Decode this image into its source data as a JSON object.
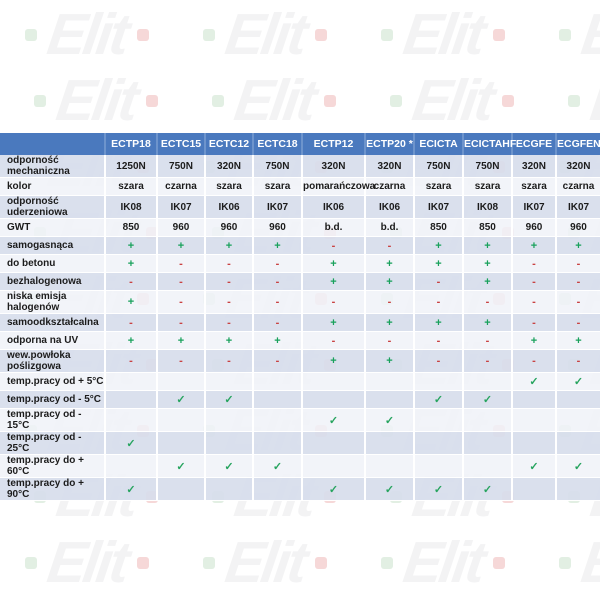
{
  "watermark": {
    "text": "Elit",
    "text_color": "#f3f3f4",
    "dot_left_color": "#e2efe3",
    "dot_right_color": "#f6d8d8"
  },
  "chart_data": {
    "type": "table",
    "title": "",
    "columns": [
      "ECTP18",
      "ECTC15",
      "ECTC12",
      "ECTC18",
      "ECTP12",
      "ECTP20 *",
      "ECICTA",
      "ECICTAHF",
      "ECGFE",
      "ECGFEN"
    ],
    "rows": [
      {
        "label": "odporność mechaniczna",
        "values": [
          "1250N",
          "750N",
          "320N",
          "750N",
          "320N",
          "320N",
          "750N",
          "750N",
          "320N",
          "320N"
        ]
      },
      {
        "label": "kolor",
        "values": [
          "szara",
          "czarna",
          "szara",
          "szara",
          "pomarańczowa",
          "czarna",
          "szara",
          "szara",
          "szara",
          "czarna"
        ]
      },
      {
        "label": "odporność uderzeniowa",
        "values": [
          "IK08",
          "IK07",
          "IK06",
          "IK07",
          "IK06",
          "IK06",
          "IK07",
          "IK08",
          "IK07",
          "IK07"
        ]
      },
      {
        "label": "GWT",
        "values": [
          "850",
          "960",
          "960",
          "960",
          "b.d.",
          "b.d.",
          "850",
          "850",
          "960",
          "960"
        ]
      },
      {
        "label": "samogasnąca",
        "values": [
          "+",
          "+",
          "+",
          "+",
          "-",
          "-",
          "+",
          "+",
          "+",
          "+"
        ]
      },
      {
        "label": "do betonu",
        "values": [
          "+",
          "-",
          "-",
          "-",
          "+",
          "+",
          "+",
          "+",
          "-",
          "-"
        ]
      },
      {
        "label": "bezhalogenowa",
        "values": [
          "-",
          "-",
          "-",
          "-",
          "+",
          "+",
          "-",
          "+",
          "-",
          "-"
        ]
      },
      {
        "label": "niska emisja halogenów",
        "values": [
          "+",
          "-",
          "-",
          "-",
          "-",
          "-",
          "-",
          "-",
          "-",
          "-"
        ]
      },
      {
        "label": "samoodkształcalna",
        "values": [
          "-",
          "-",
          "-",
          "-",
          "+",
          "+",
          "+",
          "+",
          "-",
          "-"
        ]
      },
      {
        "label": "odporna na UV",
        "values": [
          "+",
          "+",
          "+",
          "+",
          "-",
          "-",
          "-",
          "-",
          "+",
          "+"
        ]
      },
      {
        "label": "wew.powłoka poślizgowa",
        "values": [
          "-",
          "-",
          "-",
          "-",
          "+",
          "+",
          "-",
          "-",
          "-",
          "-"
        ]
      },
      {
        "label": "temp.pracy od + 5°C",
        "values": [
          "",
          "",
          "",
          "",
          "",
          "",
          "",
          "",
          "✓",
          "✓"
        ]
      },
      {
        "label": "temp.pracy od - 5°C",
        "values": [
          "",
          "✓",
          "✓",
          "",
          "",
          "",
          "✓",
          "✓",
          "",
          ""
        ]
      },
      {
        "label": "temp.pracy od - 15°C",
        "values": [
          "",
          "",
          "",
          "",
          "✓",
          "✓",
          "",
          "",
          "",
          ""
        ]
      },
      {
        "label": "temp.pracy od - 25°C",
        "values": [
          "✓",
          "",
          "",
          "",
          "",
          "",
          "",
          "",
          "",
          ""
        ]
      },
      {
        "label": "temp.pracy do + 60°C",
        "values": [
          "",
          "✓",
          "✓",
          "✓",
          "",
          "",
          "",
          "",
          "✓",
          "✓"
        ]
      },
      {
        "label": "temp.pracy do + 90°C",
        "values": [
          "✓",
          "",
          "",
          "",
          "✓",
          "✓",
          "✓",
          "✓",
          "",
          ""
        ]
      }
    ],
    "colors": {
      "header_bg": "#4a79be",
      "row_odd": "#d7ddec",
      "row_even": "#f0f2f8",
      "plus": "#18a15b",
      "minus": "#c94242",
      "check": "#27a45f"
    }
  }
}
